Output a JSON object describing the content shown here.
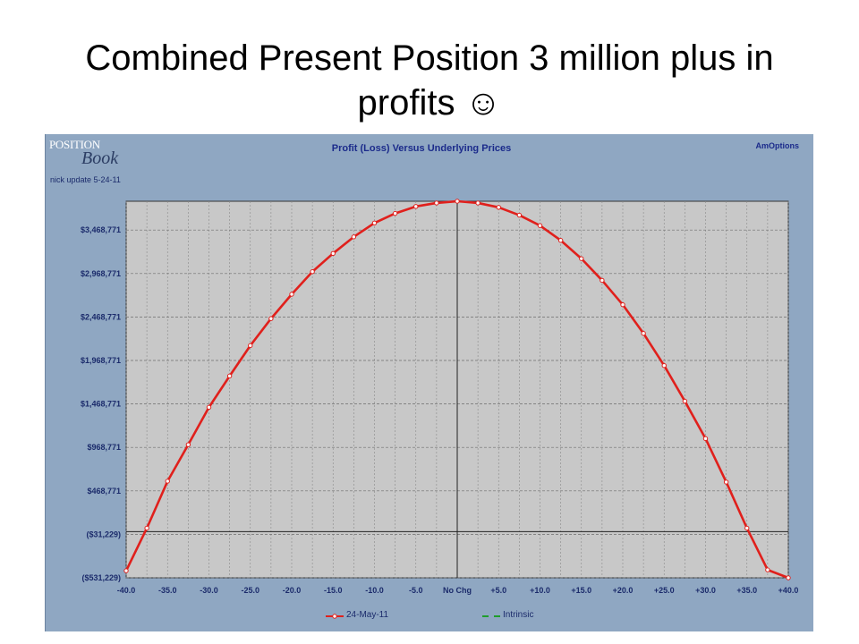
{
  "slide": {
    "title_line1": "Combined Present Position 3 million plus in",
    "title_line2": "profits ☺"
  },
  "panel": {
    "logo_top": "POSITION",
    "logo_bottom": "Book",
    "note": "nick update 5-24-11",
    "title": "Profit (Loss) Versus Underlying Prices",
    "brand": "AmOptions"
  },
  "colors": {
    "panel_bg": "#8fa7c2",
    "plot_bg": "#c8c8c8",
    "series": "#e0201c",
    "intrinsic": "#1f9e2c",
    "axis_text": "#1b2b6b"
  },
  "chart_data": {
    "type": "line",
    "title": "Profit (Loss) Versus Underlying Prices",
    "xlabel": "",
    "ylabel": "",
    "x_tick_labels": [
      "-40.0",
      "-35.0",
      "-30.0",
      "-25.0",
      "-20.0",
      "-15.0",
      "-10.0",
      "-5.0",
      "No Chg",
      "+5.0",
      "+10.0",
      "+15.0",
      "+20.0",
      "+25.0",
      "+30.0",
      "+35.0",
      "+40.0"
    ],
    "y_tick_values": [
      -531229,
      -31229,
      468771,
      968771,
      1468771,
      1968771,
      2468771,
      2968771,
      3468771
    ],
    "y_tick_labels": [
      "($531,229)",
      "($31,229)",
      "$468,771",
      "$968,771",
      "$1,468,771",
      "$1,968,771",
      "$2,468,771",
      "$2,968,771",
      "$3,468,771"
    ],
    "xlim": [
      -40,
      40
    ],
    "ylim": [
      -531229,
      3800000
    ],
    "grid": true,
    "legend_placement": "bottom",
    "series": [
      {
        "name": "24-May-11",
        "color": "#e0201c",
        "x": [
          -40,
          -37.5,
          -35,
          -32.5,
          -30,
          -27.5,
          -25,
          -22.5,
          -20,
          -17.5,
          -15,
          -12.5,
          -10,
          -7.5,
          -5,
          -2.5,
          0,
          2.5,
          5,
          7.5,
          10,
          12.5,
          15,
          17.5,
          20,
          22.5,
          25,
          27.5,
          30,
          32.5,
          35,
          37.5,
          40
        ],
        "y": [
          -450000,
          40000,
          580000,
          1000000,
          1430000,
          1790000,
          2140000,
          2450000,
          2730000,
          2990000,
          3200000,
          3390000,
          3550000,
          3660000,
          3740000,
          3780000,
          3800000,
          3780000,
          3730000,
          3640000,
          3520000,
          3350000,
          3140000,
          2890000,
          2610000,
          2280000,
          1910000,
          1500000,
          1070000,
          570000,
          40000,
          -440000,
          -531229
        ]
      },
      {
        "name": "Intrinsic",
        "color": "#1f9e2c",
        "x": [],
        "y": []
      }
    ]
  }
}
